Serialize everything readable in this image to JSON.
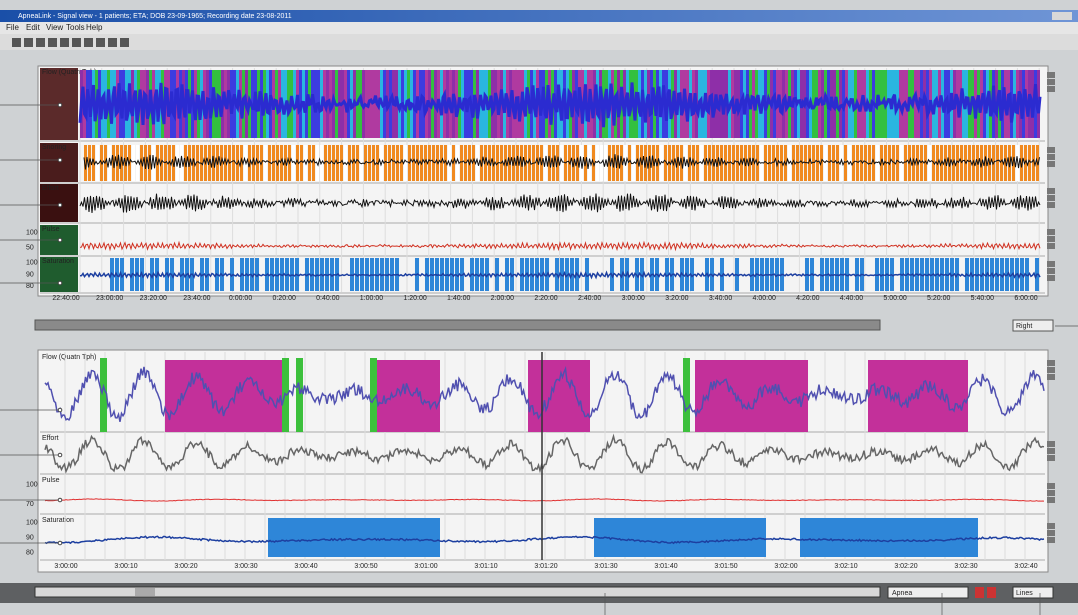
{
  "window": {
    "title": "ApneaLink - Signal view - 1 patients; ETA; DOB 23-09-1965; Recording date 23-08-2011",
    "menu": [
      "File",
      "Edit",
      "View",
      "Tools",
      "Help"
    ]
  },
  "overview": {
    "channels": [
      "Flow (Quatn Tph)",
      "Snoring",
      "Effort",
      "Pulse",
      "Saturation"
    ],
    "pulse_axis": [
      "100",
      "50"
    ],
    "saturation_axis": [
      "100",
      "90",
      "80"
    ],
    "time_labels": [
      "22:40:00",
      "23:00:00",
      "23:20:00",
      "23:40:00",
      "0:00:00",
      "0:20:00",
      "0:40:00",
      "1:00:00",
      "1:20:00",
      "1:40:00",
      "2:00:00",
      "2:20:00",
      "2:40:00",
      "3:00:00",
      "3:20:00",
      "3:40:00",
      "4:00:00",
      "4:20:00",
      "4:40:00",
      "5:00:00",
      "5:20:00",
      "5:40:00",
      "6:00:00"
    ],
    "zoom_select": "Right"
  },
  "detail": {
    "channels": [
      "Flow (Quatn Tph)",
      "Effort",
      "Pulse",
      "Saturation"
    ],
    "pulse_axis": [
      "100",
      "70"
    ],
    "saturation_axis": [
      "100",
      "90",
      "80"
    ],
    "time_labels": [
      "3:00:00",
      "3:00:10",
      "3:00:20",
      "3:00:30",
      "3:00:40",
      "3:00:50",
      "3:01:00",
      "3:01:10",
      "3:01:20",
      "3:01:30",
      "3:01:40",
      "3:01:50",
      "3:02:00",
      "3:02:10",
      "3:02:20",
      "3:02:30",
      "3:02:40"
    ],
    "event_select": "Apnea",
    "view_select": "Lines"
  }
}
